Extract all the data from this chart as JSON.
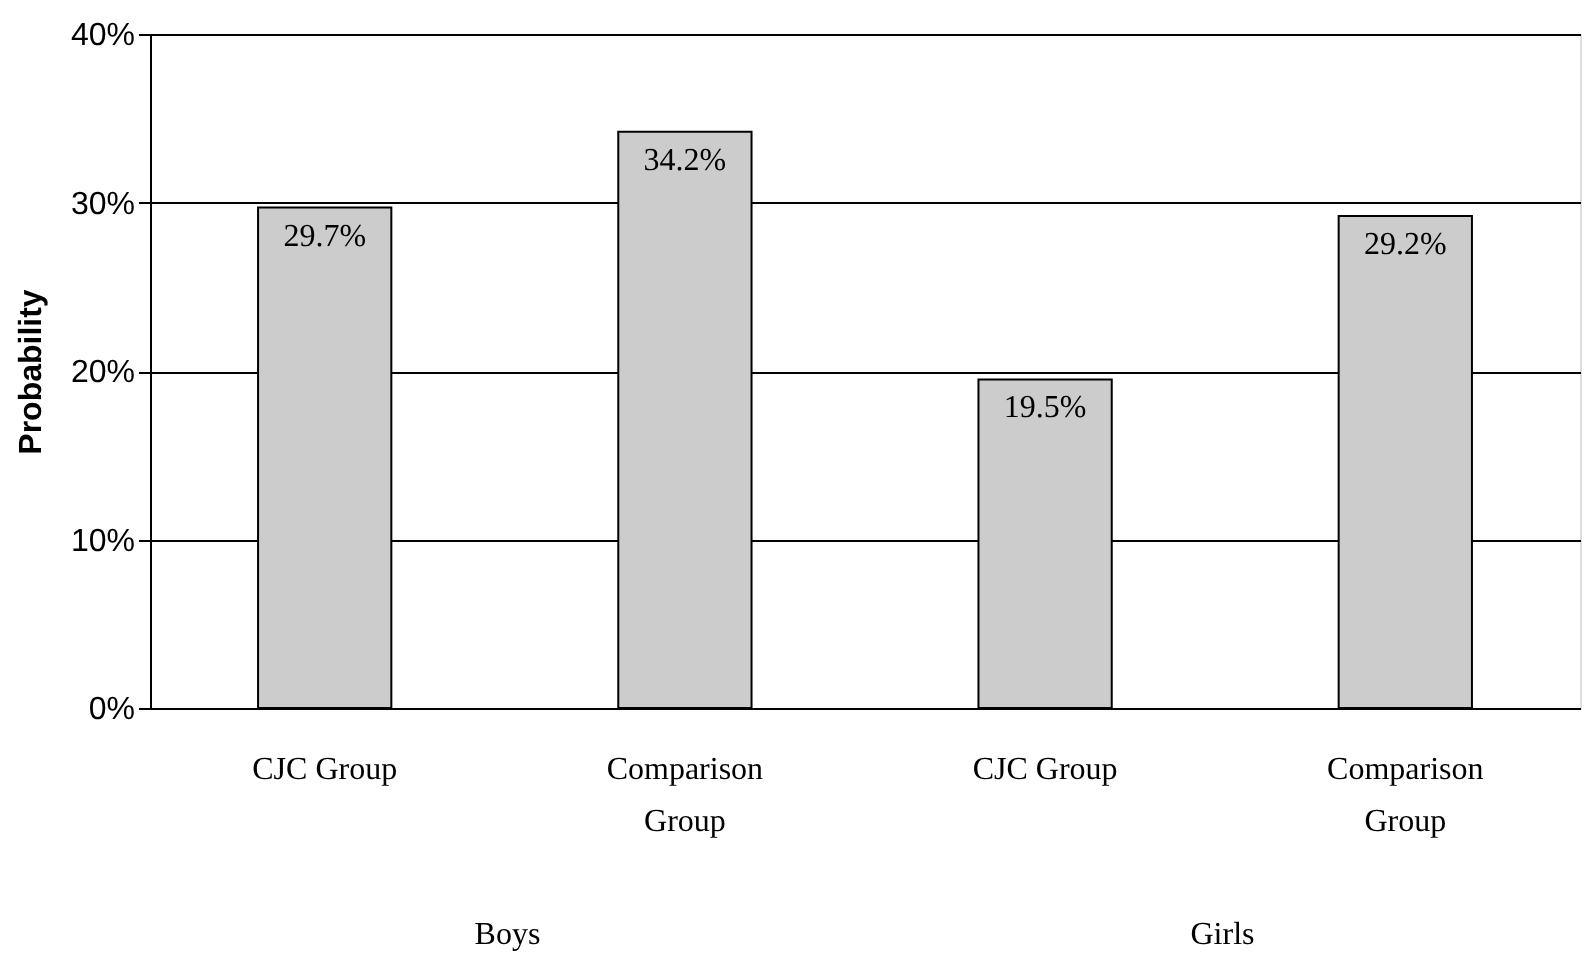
{
  "chart_data": {
    "type": "bar",
    "ylabel": "Probability",
    "categories": [
      "CJC Group",
      "Comparison Group",
      "CJC Group",
      "Comparison Group"
    ],
    "series": [
      {
        "color": "#cccccc",
        "values": [
          29.7,
          34.2,
          19.5,
          29.2
        ],
        "value_labels": [
          "29.7%",
          "34.2%",
          "19.5%",
          "29.2%"
        ]
      }
    ],
    "ylim": [
      0,
      40
    ],
    "yticks": [
      {
        "value": 0,
        "label": "0%"
      },
      {
        "value": 10,
        "label": "10%"
      },
      {
        "value": 20,
        "label": "20%"
      },
      {
        "value": 30,
        "label": "30%"
      },
      {
        "value": 40,
        "label": "40%"
      }
    ],
    "grid": "y",
    "annotations": [
      "Boys",
      "Girls"
    ]
  }
}
